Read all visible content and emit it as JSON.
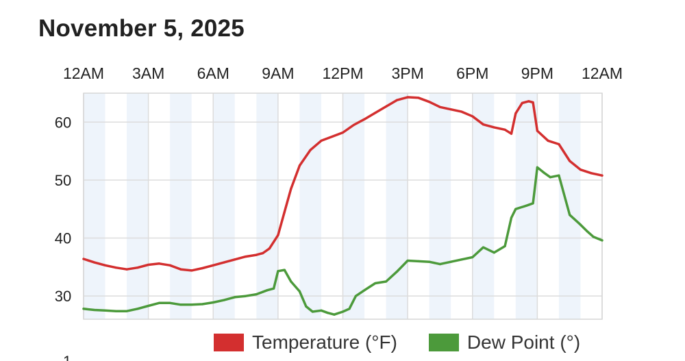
{
  "page": {
    "title": "November 5, 2025",
    "next_chart_partial_tick": "1"
  },
  "chart_data": {
    "type": "line",
    "title": "November 5, 2025",
    "x_tick_labels": [
      "12AM",
      "3AM",
      "6AM",
      "9AM",
      "12PM",
      "3PM",
      "6PM",
      "9PM",
      "12AM"
    ],
    "x_range_hours": [
      0,
      24
    ],
    "y_ticks": [
      30,
      40,
      50,
      60
    ],
    "ylim": [
      26,
      65
    ],
    "grid": "on",
    "legend_position": "bottom",
    "series": [
      {
        "name": "Temperature (°F)",
        "color": "#d32f2f",
        "points": [
          [
            0,
            36.4
          ],
          [
            0.5,
            35.8
          ],
          [
            1,
            35.3
          ],
          [
            1.5,
            34.9
          ],
          [
            2,
            34.6
          ],
          [
            2.5,
            34.9
          ],
          [
            3,
            35.4
          ],
          [
            3.5,
            35.6
          ],
          [
            4,
            35.3
          ],
          [
            4.5,
            34.6
          ],
          [
            5,
            34.4
          ],
          [
            5.5,
            34.8
          ],
          [
            6,
            35.3
          ],
          [
            6.5,
            35.8
          ],
          [
            7,
            36.3
          ],
          [
            7.5,
            36.8
          ],
          [
            8,
            37.1
          ],
          [
            8.3,
            37.4
          ],
          [
            8.6,
            38.2
          ],
          [
            9,
            40.5
          ],
          [
            9.3,
            44.5
          ],
          [
            9.6,
            48.5
          ],
          [
            10,
            52.5
          ],
          [
            10.5,
            55.2
          ],
          [
            11,
            56.8
          ],
          [
            11.5,
            57.5
          ],
          [
            12,
            58.2
          ],
          [
            12.5,
            59.5
          ],
          [
            13,
            60.5
          ],
          [
            13.5,
            61.6
          ],
          [
            14,
            62.7
          ],
          [
            14.5,
            63.8
          ],
          [
            15,
            64.3
          ],
          [
            15.5,
            64.2
          ],
          [
            16,
            63.5
          ],
          [
            16.5,
            62.6
          ],
          [
            17,
            62.2
          ],
          [
            17.5,
            61.8
          ],
          [
            18,
            61.0
          ],
          [
            18.5,
            59.6
          ],
          [
            19,
            59.1
          ],
          [
            19.5,
            58.7
          ],
          [
            19.8,
            58.0
          ],
          [
            20,
            61.5
          ],
          [
            20.3,
            63.3
          ],
          [
            20.6,
            63.6
          ],
          [
            20.8,
            63.4
          ],
          [
            21,
            58.5
          ],
          [
            21.5,
            56.8
          ],
          [
            22,
            56.2
          ],
          [
            22.5,
            53.3
          ],
          [
            23,
            51.8
          ],
          [
            23.5,
            51.2
          ],
          [
            24,
            50.8
          ]
        ]
      },
      {
        "name": "Dew Point (°)",
        "color": "#4c9a3b",
        "points": [
          [
            0,
            27.8
          ],
          [
            0.5,
            27.6
          ],
          [
            1,
            27.5
          ],
          [
            1.5,
            27.4
          ],
          [
            2,
            27.4
          ],
          [
            2.5,
            27.8
          ],
          [
            3,
            28.3
          ],
          [
            3.5,
            28.8
          ],
          [
            4,
            28.8
          ],
          [
            4.5,
            28.5
          ],
          [
            5,
            28.5
          ],
          [
            5.5,
            28.6
          ],
          [
            6,
            28.9
          ],
          [
            6.5,
            29.3
          ],
          [
            7,
            29.8
          ],
          [
            7.5,
            30.0
          ],
          [
            8,
            30.3
          ],
          [
            8.5,
            31.0
          ],
          [
            8.8,
            31.3
          ],
          [
            9,
            34.3
          ],
          [
            9.3,
            34.5
          ],
          [
            9.6,
            32.5
          ],
          [
            10,
            30.8
          ],
          [
            10.3,
            28.2
          ],
          [
            10.6,
            27.3
          ],
          [
            11,
            27.5
          ],
          [
            11.3,
            27.1
          ],
          [
            11.6,
            26.8
          ],
          [
            12,
            27.3
          ],
          [
            12.3,
            27.8
          ],
          [
            12.6,
            30.0
          ],
          [
            13,
            31.0
          ],
          [
            13.5,
            32.2
          ],
          [
            14,
            32.5
          ],
          [
            14.5,
            34.2
          ],
          [
            15,
            36.1
          ],
          [
            15.5,
            36.0
          ],
          [
            16,
            35.9
          ],
          [
            16.5,
            35.5
          ],
          [
            17,
            35.9
          ],
          [
            17.5,
            36.3
          ],
          [
            18,
            36.7
          ],
          [
            18.5,
            38.4
          ],
          [
            19,
            37.5
          ],
          [
            19.5,
            38.6
          ],
          [
            19.8,
            43.5
          ],
          [
            20,
            45.0
          ],
          [
            20.5,
            45.6
          ],
          [
            20.8,
            46.0
          ],
          [
            21,
            52.2
          ],
          [
            21.3,
            51.3
          ],
          [
            21.6,
            50.5
          ],
          [
            22,
            50.8
          ],
          [
            22.5,
            44.0
          ],
          [
            23,
            42.3
          ],
          [
            23.3,
            41.2
          ],
          [
            23.6,
            40.2
          ],
          [
            24,
            39.6
          ]
        ]
      }
    ]
  }
}
